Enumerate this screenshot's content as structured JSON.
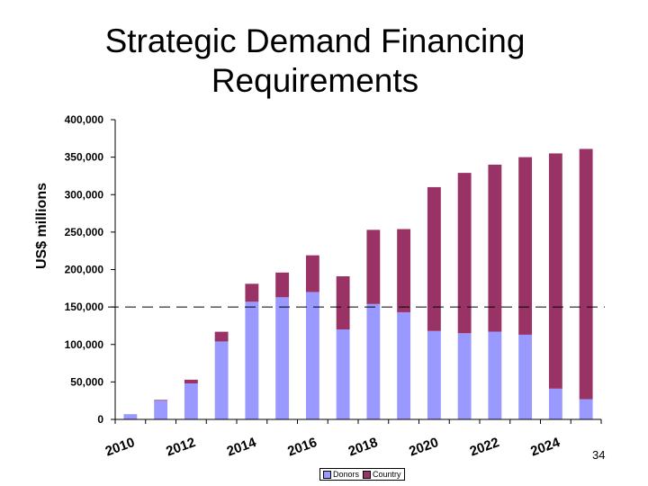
{
  "slide": {
    "title_line1": "Strategic Demand Financing",
    "title_line2": "Requirements",
    "page_number": "34"
  },
  "colors": {
    "donors": "#9999FF",
    "country": "#993366",
    "reference_line": "#000000"
  },
  "chart_data": {
    "type": "bar",
    "stacked": true,
    "title": "Strategic Demand Financing Requirements",
    "xlabel": "",
    "ylabel": "US$ millions",
    "ylim": [
      0,
      400000
    ],
    "yticks": [
      0,
      50000,
      100000,
      150000,
      200000,
      250000,
      300000,
      350000,
      400000
    ],
    "ytick_labels": [
      "0",
      "50,000",
      "100,000",
      "150,000",
      "200,000",
      "250,000",
      "300,000",
      "350,000",
      "400,000"
    ],
    "categories": [
      "2010",
      "2011",
      "2012",
      "2013",
      "2014",
      "2015",
      "2016",
      "2017",
      "2018",
      "2019",
      "2020",
      "2021",
      "2022",
      "2023",
      "2024",
      "2025"
    ],
    "xtick_labels": [
      "2010",
      "",
      "2012",
      "",
      "2014",
      "",
      "2016",
      "",
      "2018",
      "",
      "2020",
      "",
      "2022",
      "",
      "2024",
      ""
    ],
    "series": [
      {
        "name": "Donors",
        "values": [
          7000,
          25000,
          48000,
          104000,
          157000,
          163000,
          170000,
          120000,
          154000,
          143000,
          118000,
          115000,
          117000,
          113000,
          41000,
          27000
        ]
      },
      {
        "name": "Country",
        "values": [
          0,
          1000,
          5000,
          13000,
          24000,
          33000,
          49000,
          71000,
          99000,
          111000,
          192000,
          214000,
          223000,
          237000,
          314000,
          334000
        ]
      }
    ],
    "reference_line": {
      "y": 150000,
      "style": "dashed"
    },
    "grid": false,
    "legend": {
      "position": "bottom",
      "entries": [
        "Donors",
        "Country"
      ]
    }
  }
}
